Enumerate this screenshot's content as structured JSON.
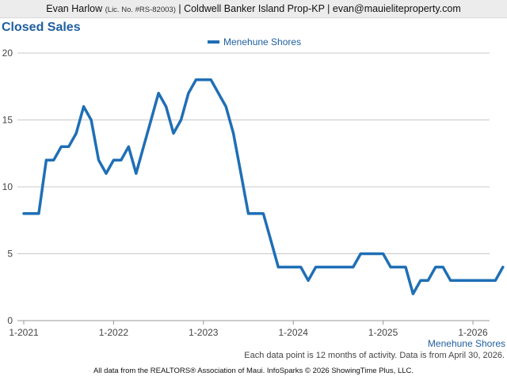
{
  "header": {
    "agent_name": "Evan Harlow",
    "license": "(Lic. No. #RS-82003)",
    "details": "| Coldwell Banker Island Prop-KP | evan@mauieliteproperty.com"
  },
  "chart_title": "Closed Sales",
  "footnote": "Each data point is 12 months of activity. Data is from April 30, 2026.",
  "copyright": "All data from the REALTORS® Association of Maui. InfoSparks © 2026 ShowingTime Plus, LLC.",
  "colors": {
    "series": "#1f6fb5",
    "title": "#1f5fa0",
    "grid": "#c8c8c8"
  },
  "chart_data": {
    "type": "line",
    "title": "Closed Sales",
    "legend_position": "top-center",
    "grid": true,
    "ylim": [
      0,
      20
    ],
    "y_ticks": [
      "0",
      "5",
      "10",
      "15",
      "20"
    ],
    "x_ticks": [
      "1-2021",
      "1-2022",
      "1-2023",
      "1-2024",
      "1-2025",
      "1-2026"
    ],
    "x_axis_series_label": "Menehune Shores",
    "x_start": "2021-01",
    "series": [
      {
        "name": "Menehune Shores",
        "color": "#1f6fb5",
        "values": [
          8,
          8,
          8,
          12,
          12,
          13,
          13,
          14,
          16,
          15,
          12,
          11,
          12,
          12,
          13,
          11,
          13,
          15,
          17,
          16,
          14,
          15,
          17,
          18,
          18,
          18,
          17,
          16,
          14,
          11,
          8,
          8,
          8,
          6,
          4,
          4,
          4,
          4,
          3,
          4,
          4,
          4,
          4,
          4,
          4,
          5,
          5,
          5,
          5,
          4,
          4,
          4,
          2,
          3,
          3,
          4,
          4,
          3,
          3,
          3,
          3,
          3,
          3,
          3,
          4
        ]
      }
    ]
  }
}
